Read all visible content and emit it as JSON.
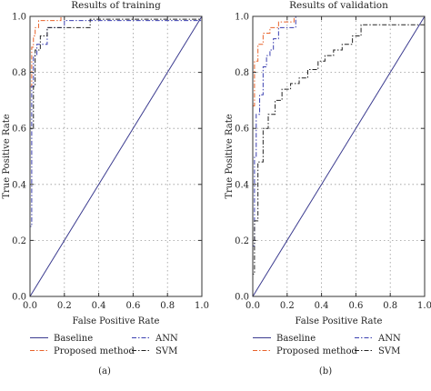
{
  "figure": {
    "panel_labels": [
      "(a)",
      "(b)"
    ]
  },
  "colors": {
    "baseline": "#3b3b8f",
    "proposed": "#e8622a",
    "ann": "#3a3fb0",
    "svm": "#222222",
    "grid": "#999999"
  },
  "chart_data": [
    {
      "type": "line",
      "title": "Results of training",
      "xlabel": "False Positive Rate",
      "ylabel": "True Positive Rate",
      "xlim": [
        0,
        1.0
      ],
      "ylim": [
        0,
        1.0
      ],
      "xticks": [
        "0.0",
        "0.2",
        "0.4",
        "0.6",
        "0.8",
        "1.0"
      ],
      "yticks": [
        "0.0",
        "0.2",
        "0.4",
        "0.6",
        "0.8",
        "1.0"
      ],
      "grid": true,
      "legend_position": "below",
      "series": [
        {
          "name": "Baseline",
          "style": "solid",
          "color_key": "baseline",
          "x": [
            0,
            1
          ],
          "y": [
            0,
            1
          ]
        },
        {
          "name": "Proposed method",
          "style": "dashdot",
          "color_key": "proposed",
          "x": [
            0,
            0,
            0.01,
            0.01,
            0.02,
            0.02,
            0.03,
            0.03,
            0.05,
            0.05,
            0.18,
            0.18,
            1.0
          ],
          "y": [
            0,
            0.75,
            0.75,
            0.89,
            0.89,
            0.93,
            0.93,
            0.96,
            0.96,
            0.985,
            0.985,
            1.0,
            1.0
          ]
        },
        {
          "name": "ANN",
          "style": "dashdot",
          "color_key": "ann",
          "x": [
            0,
            0,
            0.01,
            0.01,
            0.02,
            0.02,
            0.04,
            0.04,
            0.1,
            0.1,
            0.2,
            0.2,
            1.0
          ],
          "y": [
            0,
            0.25,
            0.25,
            0.75,
            0.75,
            0.86,
            0.86,
            0.9,
            0.9,
            0.96,
            0.96,
            0.985,
            0.985
          ]
        },
        {
          "name": "SVM",
          "style": "dashdot",
          "color_key": "svm",
          "x": [
            0,
            0,
            0.02,
            0.02,
            0.03,
            0.03,
            0.06,
            0.06,
            0.1,
            0.1,
            0.35,
            0.35,
            1.0
          ],
          "y": [
            0,
            0.6,
            0.6,
            0.75,
            0.75,
            0.88,
            0.88,
            0.93,
            0.93,
            0.96,
            0.96,
            0.99,
            0.99
          ]
        }
      ]
    },
    {
      "type": "line",
      "title": "Results of validation",
      "xlabel": "False Positive Rate",
      "ylabel": "True Positive Rate",
      "xlim": [
        0,
        1.0
      ],
      "ylim": [
        0,
        1.0
      ],
      "xticks": [
        "0.0",
        "0.2",
        "0.4",
        "0.6",
        "0.8",
        "1.0"
      ],
      "yticks": [
        "0.0",
        "0.2",
        "0.4",
        "0.6",
        "0.8",
        "1.0"
      ],
      "grid": true,
      "legend_position": "below",
      "series": [
        {
          "name": "Baseline",
          "style": "solid",
          "color_key": "baseline",
          "x": [
            0,
            1
          ],
          "y": [
            0,
            1
          ]
        },
        {
          "name": "Proposed method",
          "style": "dashdot",
          "color_key": "proposed",
          "x": [
            0,
            0,
            0.01,
            0.01,
            0.03,
            0.03,
            0.06,
            0.06,
            0.1,
            0.1,
            0.15,
            0.15,
            0.24,
            0.24,
            1.0
          ],
          "y": [
            0,
            0.68,
            0.68,
            0.84,
            0.84,
            0.9,
            0.9,
            0.94,
            0.94,
            0.96,
            0.96,
            0.98,
            0.98,
            1.0,
            1.0
          ]
        },
        {
          "name": "ANN",
          "style": "dashdot",
          "color_key": "ann",
          "x": [
            0,
            0,
            0.01,
            0.01,
            0.02,
            0.02,
            0.04,
            0.04,
            0.06,
            0.06,
            0.08,
            0.08,
            0.1,
            0.1,
            0.12,
            0.12,
            0.15,
            0.15,
            0.25,
            0.25,
            1.0
          ],
          "y": [
            0,
            0.18,
            0.18,
            0.5,
            0.5,
            0.65,
            0.65,
            0.72,
            0.72,
            0.82,
            0.82,
            0.86,
            0.86,
            0.88,
            0.88,
            0.92,
            0.92,
            0.96,
            0.96,
            1.0,
            1.0
          ]
        },
        {
          "name": "SVM",
          "style": "dashdot",
          "color_key": "svm",
          "x": [
            0,
            0,
            0.01,
            0.01,
            0.03,
            0.03,
            0.06,
            0.06,
            0.09,
            0.09,
            0.13,
            0.13,
            0.17,
            0.17,
            0.22,
            0.22,
            0.27,
            0.27,
            0.32,
            0.32,
            0.38,
            0.38,
            0.42,
            0.42,
            0.47,
            0.47,
            0.52,
            0.52,
            0.58,
            0.58,
            0.63,
            0.63,
            1.0
          ],
          "y": [
            0,
            0.08,
            0.08,
            0.27,
            0.27,
            0.48,
            0.48,
            0.6,
            0.6,
            0.65,
            0.65,
            0.7,
            0.7,
            0.74,
            0.74,
            0.76,
            0.76,
            0.78,
            0.78,
            0.81,
            0.81,
            0.84,
            0.84,
            0.86,
            0.86,
            0.88,
            0.88,
            0.9,
            0.9,
            0.93,
            0.93,
            0.97,
            0.97
          ]
        }
      ]
    }
  ]
}
